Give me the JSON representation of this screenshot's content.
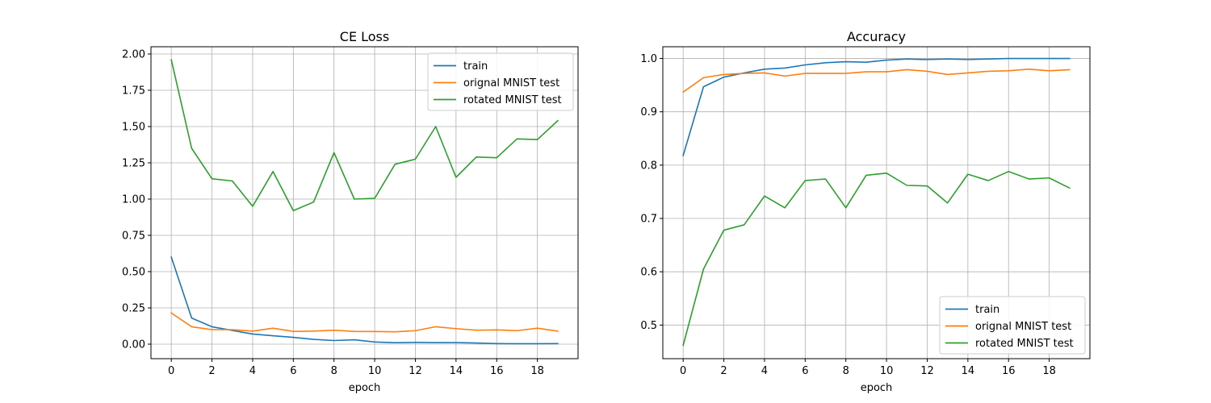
{
  "chart_data": [
    {
      "type": "line",
      "title": "CE Loss",
      "xlabel": "epoch",
      "ylabel": "",
      "xlim": [
        -1,
        20
      ],
      "ylim": [
        -0.1,
        2.05
      ],
      "xticks": [
        0,
        2,
        4,
        6,
        8,
        10,
        12,
        14,
        16,
        18
      ],
      "yticks": [
        0.0,
        0.25,
        0.5,
        0.75,
        1.0,
        1.25,
        1.5,
        1.75,
        2.0
      ],
      "ytick_labels": [
        "0.00",
        "0.25",
        "0.50",
        "0.75",
        "1.00",
        "1.25",
        "1.50",
        "1.75",
        "2.00"
      ],
      "grid": true,
      "legend_position": "top-right",
      "x": [
        0,
        1,
        2,
        3,
        4,
        5,
        6,
        7,
        8,
        9,
        10,
        11,
        12,
        13,
        14,
        15,
        16,
        17,
        18,
        19
      ],
      "series": [
        {
          "name": "train",
          "color": "#1f77b4",
          "values": [
            0.6,
            0.18,
            0.12,
            0.095,
            0.07,
            0.058,
            0.047,
            0.033,
            0.025,
            0.03,
            0.015,
            0.01,
            0.012,
            0.011,
            0.011,
            0.008,
            0.004,
            0.003,
            0.003,
            0.004
          ]
        },
        {
          "name": "orignal MNIST test",
          "color": "#ff7f0e",
          "values": [
            0.215,
            0.12,
            0.1,
            0.1,
            0.09,
            0.11,
            0.088,
            0.09,
            0.096,
            0.088,
            0.087,
            0.085,
            0.093,
            0.12,
            0.107,
            0.096,
            0.098,
            0.093,
            0.11,
            0.09
          ]
        },
        {
          "name": "rotated MNIST test",
          "color": "#2ca02c",
          "values": [
            1.96,
            1.35,
            1.14,
            1.125,
            0.95,
            1.19,
            0.92,
            0.98,
            1.32,
            1.0,
            1.005,
            1.24,
            1.275,
            1.5,
            1.15,
            1.29,
            1.285,
            1.415,
            1.41,
            1.54
          ]
        }
      ]
    },
    {
      "type": "line",
      "title": "Accuracy",
      "xlabel": "epoch",
      "ylabel": "",
      "xlim": [
        -1,
        20
      ],
      "ylim": [
        0.437,
        1.022
      ],
      "xticks": [
        0,
        2,
        4,
        6,
        8,
        10,
        12,
        14,
        16,
        18
      ],
      "yticks": [
        0.5,
        0.6,
        0.7,
        0.8,
        0.9,
        1.0
      ],
      "ytick_labels": [
        "0.5",
        "0.6",
        "0.7",
        "0.8",
        "0.9",
        "1.0"
      ],
      "grid": true,
      "legend_position": "bottom-right",
      "x": [
        0,
        1,
        2,
        3,
        4,
        5,
        6,
        7,
        8,
        9,
        10,
        11,
        12,
        13,
        14,
        15,
        16,
        17,
        18,
        19
      ],
      "series": [
        {
          "name": "train",
          "color": "#1f77b4",
          "values": [
            0.818,
            0.947,
            0.965,
            0.973,
            0.98,
            0.982,
            0.988,
            0.992,
            0.994,
            0.993,
            0.997,
            0.999,
            0.998,
            0.999,
            0.998,
            0.999,
            1.0,
            1.0,
            1.0,
            1.0
          ]
        },
        {
          "name": "orignal MNIST test",
          "color": "#ff7f0e",
          "values": [
            0.937,
            0.964,
            0.97,
            0.972,
            0.973,
            0.967,
            0.972,
            0.972,
            0.972,
            0.975,
            0.975,
            0.979,
            0.976,
            0.97,
            0.973,
            0.976,
            0.977,
            0.98,
            0.977,
            0.979
          ]
        },
        {
          "name": "rotated MNIST test",
          "color": "#2ca02c",
          "values": [
            0.462,
            0.605,
            0.678,
            0.688,
            0.742,
            0.72,
            0.771,
            0.774,
            0.72,
            0.781,
            0.785,
            0.762,
            0.761,
            0.729,
            0.783,
            0.771,
            0.788,
            0.774,
            0.776,
            0.757
          ]
        }
      ]
    }
  ]
}
